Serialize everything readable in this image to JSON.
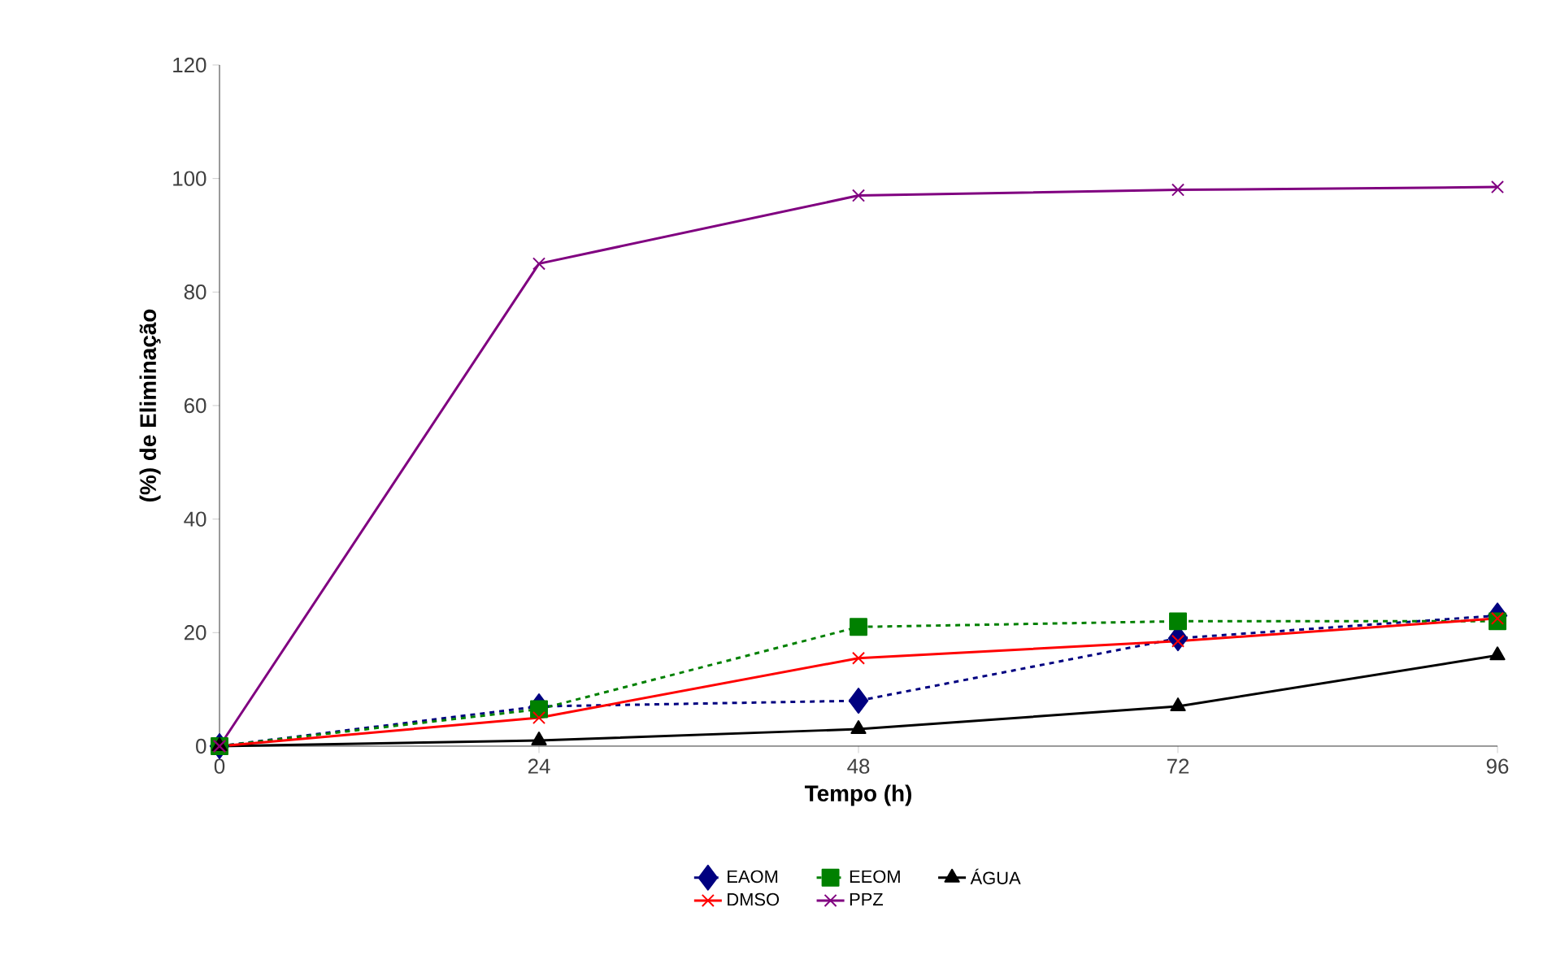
{
  "chart_data": {
    "type": "line",
    "xlabel": "Tempo (h)",
    "ylabel": "(%) de Eliminação",
    "x": [
      0,
      24,
      48,
      72,
      96
    ],
    "xlim": [
      0,
      96
    ],
    "xticks": [
      0,
      24,
      48,
      72,
      96
    ],
    "ylim": [
      0,
      120
    ],
    "yticks": [
      0,
      20,
      40,
      60,
      80,
      100,
      120
    ],
    "grid": false,
    "legend": "bottom",
    "series": [
      {
        "name": "EAOM",
        "color": "#000080",
        "line_style": "dashed",
        "marker": "diamond",
        "values": [
          0,
          7,
          8,
          19,
          23
        ]
      },
      {
        "name": "EEOM",
        "color": "#008000",
        "line_style": "dashed",
        "marker": "square",
        "values": [
          0,
          6.5,
          21,
          22,
          22
        ]
      },
      {
        "name": "ÁGUA",
        "color": "#000000",
        "line_style": "solid",
        "marker": "triangle",
        "values": [
          0,
          1,
          3,
          7,
          16
        ]
      },
      {
        "name": "DMSO",
        "color": "#ff0000",
        "line_style": "solid",
        "marker": "cross",
        "values": [
          0,
          5,
          15.5,
          18.5,
          22.5
        ]
      },
      {
        "name": "PPZ",
        "color": "#800080",
        "line_style": "solid",
        "marker": "cross",
        "values": [
          0,
          85,
          97,
          98,
          98.5
        ]
      }
    ]
  }
}
